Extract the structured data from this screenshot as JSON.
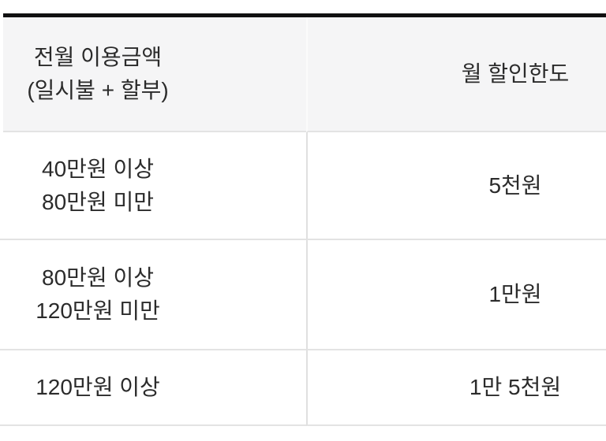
{
  "table": {
    "colors": {
      "top_border": "#111111",
      "header_bg": "#f5f5f6",
      "text": "#2b2b2b",
      "row_border": "#e3e3e3",
      "divider_body": "#e0e0e0",
      "divider_header": "#fbfbfb"
    },
    "header": {
      "usage_title_line1": "전월 이용금액",
      "usage_title_line2": "(일시불 + 할부)",
      "limit_title": "월 할인한도"
    },
    "rows": [
      {
        "tier": [
          "40만원 이상",
          "80만원 미만"
        ],
        "limit": "5천원"
      },
      {
        "tier": [
          "80만원 이상",
          "120만원 미만"
        ],
        "limit": "1만원"
      },
      {
        "tier": [
          "120만원 이상"
        ],
        "limit": "1만 5천원"
      }
    ]
  }
}
